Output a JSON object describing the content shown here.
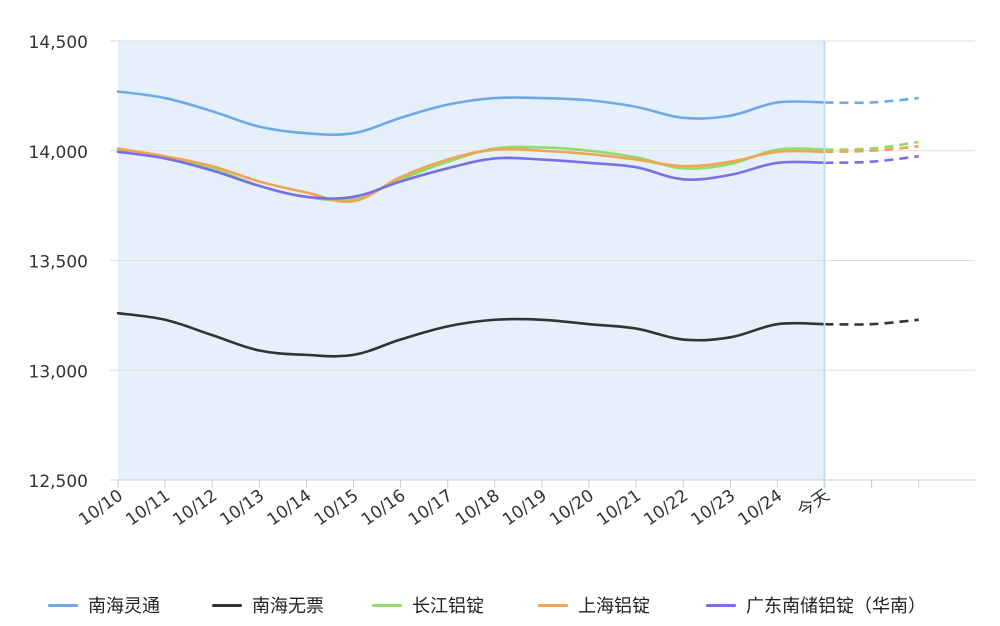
{
  "chart_data": {
    "type": "line",
    "title": "",
    "xlabel": "",
    "ylabel": "",
    "categories": [
      "10/10",
      "10/11",
      "10/12",
      "10/13",
      "10/14",
      "10/15",
      "10/16",
      "10/17",
      "10/18",
      "10/19",
      "10/20",
      "10/21",
      "10/22",
      "10/23",
      "10/24",
      "今天",
      "",
      ""
    ],
    "ylim": [
      12500,
      14500
    ],
    "yticks": [
      "12,500",
      "13,000",
      "13,500",
      "14,000",
      "14,500"
    ],
    "highlight_range_end_category": "今天",
    "grid": "horizontal",
    "legend_position": "bottom",
    "series": [
      {
        "name": "南海灵通",
        "color": "#6fa9e8",
        "values": [
          14270,
          14240,
          14180,
          14110,
          14080,
          14080,
          14150,
          14210,
          14240,
          14240,
          14230,
          14200,
          14150,
          14160,
          14220,
          14220,
          14220,
          14240
        ]
      },
      {
        "name": "南海无票",
        "color": "#333333",
        "values": [
          13260,
          13230,
          13160,
          13090,
          13070,
          13070,
          13140,
          13200,
          13230,
          13230,
          13210,
          13190,
          13140,
          13150,
          13210,
          13210,
          13210,
          13230
        ]
      },
      {
        "name": "长江铝锭",
        "color": "#8fdc6a",
        "values": [
          14005,
          13970,
          13920,
          13840,
          13790,
          13780,
          13870,
          13950,
          14010,
          14015,
          14000,
          13970,
          13920,
          13940,
          14005,
          14005,
          14010,
          14040
        ]
      },
      {
        "name": "上海铝锭",
        "color": "#f3a356",
        "values": [
          14010,
          13975,
          13930,
          13860,
          13810,
          13770,
          13880,
          13960,
          14005,
          14000,
          13985,
          13960,
          13930,
          13950,
          13995,
          13995,
          14000,
          14020
        ]
      },
      {
        "name": "广东南储铝锭（华南）",
        "color": "#7b6fe6",
        "values": [
          13995,
          13965,
          13910,
          13840,
          13790,
          13790,
          13860,
          13920,
          13965,
          13960,
          13945,
          13925,
          13870,
          13890,
          13945,
          13945,
          13950,
          13975
        ]
      }
    ],
    "forecast_start_category_index": 15
  }
}
